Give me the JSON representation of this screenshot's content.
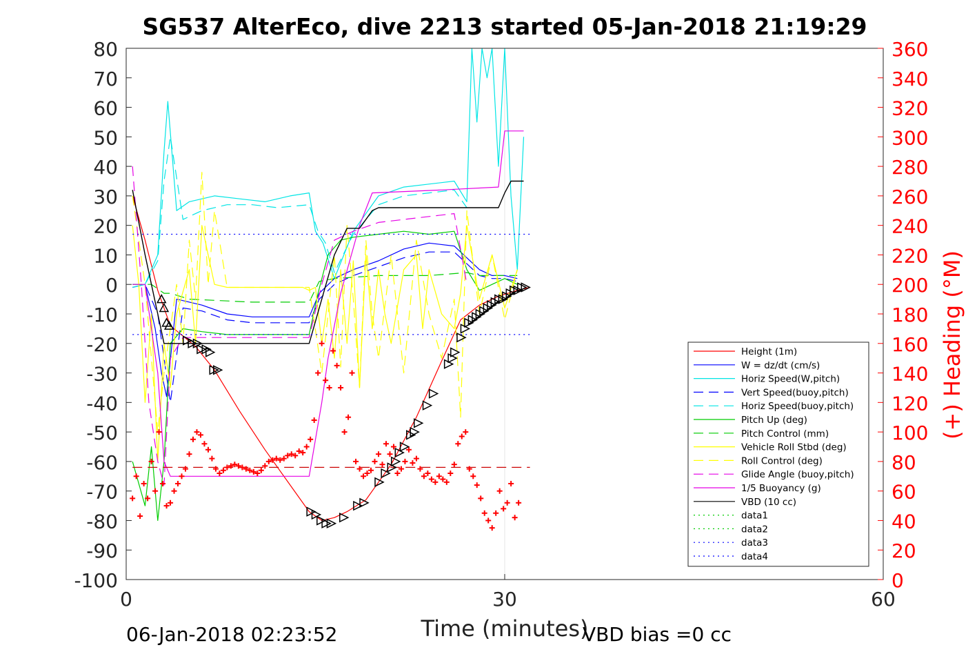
{
  "chart_data": {
    "type": "line",
    "title": "SG537 AlterEco, dive 2213 started 05-Jan-2018 21:19:29",
    "xlabel": "Time (minutes)",
    "ylabel": "",
    "y2label": "(+) Heading (°M)",
    "xlim": [
      0,
      60
    ],
    "ylim": [
      -100,
      80
    ],
    "y2lim": [
      0,
      360
    ],
    "xticks": [
      "0",
      "30",
      "60"
    ],
    "yticks": [
      "80",
      "70",
      "60",
      "50",
      "40",
      "30",
      "20",
      "10",
      "0",
      "-10",
      "-20",
      "-30",
      "-40",
      "-50",
      "-60",
      "-70",
      "-80",
      "-90",
      "-100"
    ],
    "y2ticks": [
      "360",
      "340",
      "320",
      "300",
      "280",
      "260",
      "240",
      "220",
      "200",
      "180",
      "160",
      "140",
      "120",
      "100",
      "80",
      "60",
      "40",
      "20",
      "0"
    ],
    "grid": "x-only",
    "legend_position": "lower-right",
    "footer_left": "06-Jan-2018 02:23:52",
    "footer_right": "VBD bias =0 cc",
    "legend": [
      {
        "label": "Height (1m)",
        "color": "#ff0000",
        "dash": "solid"
      },
      {
        "label": "W = dz/dt (cm/s)",
        "color": "#0000ff",
        "dash": "solid"
      },
      {
        "label": "Horiz Speed(W,pitch)",
        "color": "#00e5e5",
        "dash": "solid"
      },
      {
        "label": "Vert Speed(buoy,pitch)",
        "color": "#0000ff",
        "dash": "dashed"
      },
      {
        "label": "Horiz Speed(buoy,pitch)",
        "color": "#00e5e5",
        "dash": "dashed"
      },
      {
        "label": "Pitch Up (deg)",
        "color": "#00cc00",
        "dash": "solid"
      },
      {
        "label": "Pitch Control (mm)",
        "color": "#00cc00",
        "dash": "dashed"
      },
      {
        "label": "Vehicle Roll Stbd (deg)",
        "color": "#ffff00",
        "dash": "solid"
      },
      {
        "label": "Roll Control (deg)",
        "color": "#ffff00",
        "dash": "dashed"
      },
      {
        "label": "Glide Angle (buoy,pitch)",
        "color": "#e500e5",
        "dash": "dashed"
      },
      {
        "label": "1/5 Buoyancy (g)",
        "color": "#e500e5",
        "dash": "solid"
      },
      {
        "label": "VBD (10 cc)",
        "color": "#000000",
        "dash": "solid"
      },
      {
        "label": "data1",
        "color": "#00cc00",
        "dash": "dotted"
      },
      {
        "label": "data2",
        "color": "#00cc00",
        "dash": "dotted"
      },
      {
        "label": "data3",
        "color": "#0000ff",
        "dash": "dotted"
      },
      {
        "label": "data4",
        "color": "#0000ff",
        "dash": "dotted"
      }
    ],
    "series": [
      {
        "key": "height",
        "x": [
          0.5,
          1.5,
          2.5,
          3.0,
          3.5,
          5.5,
          7.0,
          9.0,
          11.0,
          13.0,
          14.5,
          15.5,
          16.5,
          17.5,
          19.0,
          21.0,
          23.0,
          25.0,
          26.5,
          28.0,
          29.5,
          31.0,
          32.0
        ],
        "y": [
          30,
          15,
          -2,
          -8,
          -14,
          -21,
          -29,
          -43,
          -56,
          -68,
          -77,
          -80,
          -79,
          -77,
          -73,
          -61,
          -45,
          -26,
          -12,
          -7,
          -4,
          -2,
          -1
        ]
      },
      {
        "key": "w",
        "x": [
          0.5,
          1.5,
          2.3,
          2.8,
          3.2,
          4.0,
          6.0,
          8.0,
          10.0,
          12.0,
          14.5,
          15.3,
          16.5,
          18.0,
          20.0,
          22.0,
          24.0,
          26.0,
          27.0,
          28.0,
          29.0,
          30.0,
          31.0
        ],
        "y": [
          -1,
          0,
          -15,
          -30,
          -38,
          -5,
          -7,
          -10,
          -11,
          -11,
          -11,
          -3,
          2,
          5,
          8,
          12,
          14,
          13,
          9,
          5,
          3,
          3,
          2
        ]
      },
      {
        "key": "horiz_w",
        "x": [
          0.5,
          1.5,
          2.5,
          3.0,
          3.3,
          4.0,
          5.0,
          7.0,
          9.0,
          11.0,
          13.0,
          14.5,
          15.0,
          15.6,
          16.5,
          18.0,
          20.0,
          22.0,
          24.0,
          26.0,
          27.0,
          27.4,
          27.8,
          28.2,
          28.6,
          29.0,
          29.5,
          30.0,
          30.5,
          31.0,
          31.5
        ],
        "y": [
          -1,
          0,
          10,
          45,
          62,
          25,
          28,
          30,
          29,
          28,
          30,
          31,
          18,
          14,
          2,
          18,
          30,
          33,
          34,
          35,
          28,
          80,
          55,
          80,
          70,
          80,
          40,
          80,
          30,
          5,
          50
        ]
      },
      {
        "key": "vert_buoy",
        "x": [
          0.5,
          1.5,
          2.5,
          3.0,
          3.5,
          4.5,
          6.0,
          8.0,
          10.0,
          12.0,
          14.5,
          15.3,
          16.5,
          18.0,
          20.0,
          22.0,
          24.0,
          26.0,
          27.0,
          28.0,
          29.0,
          30.0,
          31.0
        ],
        "y": [
          0,
          0,
          -10,
          -25,
          -40,
          -8,
          -9,
          -12,
          -13,
          -13,
          -13,
          -5,
          0,
          3,
          6,
          9,
          11,
          11,
          7,
          3,
          2,
          2,
          1
        ]
      },
      {
        "key": "horiz_buoy",
        "x": [
          0.5,
          1.5,
          2.5,
          3.0,
          3.5,
          4.5,
          6.0,
          8.0,
          10.0,
          12.0,
          14.5,
          15.2,
          15.8,
          16.5,
          18.0,
          20.0,
          22.0,
          24.0,
          26.0,
          27.0
        ],
        "y": [
          0,
          0,
          8,
          35,
          50,
          22,
          25,
          27,
          27,
          26,
          27,
          18,
          14,
          4,
          17,
          27,
          30,
          31,
          32,
          26
        ]
      },
      {
        "key": "pitch_up",
        "x": [
          0.5,
          1.5,
          2.0,
          2.5,
          3.0,
          3.5,
          4.5,
          6.0,
          8.0,
          10.0,
          12.0,
          14.5,
          15.2,
          16.0,
          17.0,
          18.0,
          20.0,
          22.0,
          24.0,
          26.0,
          27.0,
          28.0,
          29.0,
          30.0,
          31.0
        ],
        "y": [
          -60,
          -75,
          -55,
          -80,
          -60,
          -20,
          -15,
          -16,
          -17,
          -17,
          -17,
          -17,
          -3,
          10,
          15,
          16,
          17,
          18,
          17,
          18,
          5,
          -2,
          0,
          2,
          0
        ]
      },
      {
        "key": "pitch_ctrl",
        "x": [
          0.5,
          2.0,
          3.0,
          3.5,
          5.0,
          10.0,
          14.5,
          15.3,
          16.5,
          20.0,
          24.0,
          27.0,
          28.0,
          31.0
        ],
        "y": [
          0,
          0,
          -3,
          -3,
          -5,
          -6,
          -6,
          1,
          2,
          3,
          3,
          4,
          3,
          3
        ]
      },
      {
        "key": "roll",
        "x": [
          0.5,
          1.0,
          1.5,
          2.0,
          2.5,
          3.0,
          3.5,
          4.0,
          5.0,
          5.5,
          6.0,
          6.5,
          7.0,
          8.0,
          10.0,
          12.0,
          14.0,
          14.5,
          15.0,
          15.5,
          16.0,
          16.5,
          17.0,
          17.5,
          18.0,
          18.5,
          19.0,
          19.5,
          20.0,
          20.5,
          21.0,
          22.0,
          23.0,
          23.5,
          24.0,
          25.0,
          26.0,
          26.5,
          27.0,
          28.0,
          29.0,
          30.0,
          31.0
        ],
        "y": [
          20,
          0,
          -40,
          -10,
          -60,
          -20,
          -35,
          -10,
          5,
          -20,
          20,
          10,
          0,
          -1,
          -1,
          -1,
          -1,
          -2,
          -1,
          -20,
          -5,
          -25,
          5,
          -20,
          8,
          -35,
          10,
          -15,
          5,
          -10,
          -20,
          5,
          10,
          -15,
          5,
          -10,
          -15,
          -3,
          20,
          -5,
          10,
          -8,
          5
        ]
      },
      {
        "key": "roll_ctrl",
        "x": [
          0.5,
          1.5,
          2.5,
          3.0,
          4.0,
          4.5,
          5.0,
          5.5,
          6.0,
          6.5,
          7.0,
          8.0,
          10.0,
          14.5,
          15.5,
          16.5,
          17.0,
          17.5,
          18.0,
          18.5,
          19.0,
          19.5,
          20.0,
          21.0,
          22.0,
          23.0,
          24.0,
          25.0,
          26.0,
          26.5,
          27.0,
          28.0,
          29.0,
          30.0,
          31.0
        ],
        "y": [
          30,
          0,
          -50,
          -30,
          0,
          -20,
          15,
          -5,
          38,
          0,
          25,
          -1,
          -1,
          -1,
          -30,
          10,
          -28,
          20,
          -5,
          -35,
          15,
          -10,
          -25,
          10,
          -30,
          15,
          -10,
          -25,
          -5,
          -45,
          25,
          -10,
          10,
          -12,
          5
        ]
      },
      {
        "key": "glide",
        "x": [
          0.5,
          1.2,
          1.8,
          2.5,
          3.0,
          3.5,
          4.5,
          6.0,
          10.0,
          14.5,
          15.5,
          16.5,
          18.0,
          20.0,
          22.0,
          24.0,
          26.0,
          27.0
        ],
        "y": [
          40,
          0,
          -40,
          -60,
          -68,
          -25,
          -18,
          -18,
          -18,
          -18,
          0,
          15,
          18,
          21,
          22,
          23,
          24,
          0
        ]
      },
      {
        "key": "buoy",
        "x": [
          0.5,
          1.5,
          2.5,
          3.0,
          3.5,
          4.0,
          14.5,
          15.5,
          16.0,
          17.0,
          18.5,
          19.5,
          25.0,
          29.5,
          30.0,
          31.5
        ],
        "y": [
          0,
          0,
          -30,
          -60,
          -65,
          -65,
          -65,
          -40,
          -25,
          -3,
          20,
          31,
          32,
          33,
          52,
          52
        ]
      },
      {
        "key": "vbd",
        "x": [
          0.5,
          1.5,
          2.5,
          3.0,
          14.5,
          15.5,
          16.5,
          17.5,
          18.5,
          19.5,
          20.0,
          29.5,
          30.0,
          30.5,
          31.5
        ],
        "y": [
          32,
          10,
          -10,
          -20,
          -20,
          -5,
          10,
          19,
          19,
          25,
          26,
          26,
          31,
          35,
          35
        ]
      },
      {
        "key": "data1",
        "x": [
          0.5,
          32
        ],
        "y": [
          17,
          17
        ]
      },
      {
        "key": "data3",
        "x": [
          0.5,
          32
        ],
        "y": [
          -17,
          -17
        ]
      },
      {
        "key": "pitch_ctrl_ref",
        "x": [
          0.5,
          32
        ],
        "y": [
          -62,
          -62
        ]
      }
    ],
    "heading": {
      "x": [
        0.5,
        0.8,
        1.1,
        1.4,
        1.7,
        2.0,
        2.3,
        2.6,
        2.9,
        3.2,
        3.5,
        3.8,
        4.1,
        4.4,
        4.7,
        5.0,
        5.3,
        5.6,
        5.9,
        6.2,
        6.5,
        6.8,
        7.1,
        7.4,
        7.7,
        8.0,
        8.3,
        8.6,
        8.9,
        9.2,
        9.5,
        9.8,
        10.1,
        10.4,
        10.7,
        11.0,
        11.3,
        11.6,
        11.9,
        12.2,
        12.5,
        12.8,
        13.1,
        13.4,
        13.7,
        14.0,
        14.3,
        14.6,
        14.9,
        15.2,
        15.5,
        15.8,
        16.1,
        16.4,
        16.7,
        17.0,
        17.3,
        17.6,
        17.9,
        18.2,
        18.5,
        18.8,
        19.1,
        19.4,
        19.7,
        20.0,
        20.3,
        20.6,
        20.9,
        21.2,
        21.5,
        21.8,
        22.1,
        22.4,
        22.7,
        23.0,
        23.3,
        23.6,
        23.9,
        24.2,
        24.5,
        24.8,
        25.1,
        25.4,
        25.7,
        26.0,
        26.3,
        26.6,
        26.9,
        27.2,
        27.5,
        27.8,
        28.1,
        28.4,
        28.7,
        29.0,
        29.3,
        29.6,
        29.9,
        30.2,
        30.5,
        30.8,
        31.1
      ],
      "y": [
        55,
        70,
        43,
        65,
        55,
        80,
        60,
        100,
        65,
        50,
        52,
        60,
        65,
        70,
        75,
        85,
        95,
        100,
        98,
        92,
        88,
        82,
        75,
        72,
        74,
        76,
        77,
        78,
        77,
        76,
        75,
        74,
        73,
        72,
        74,
        77,
        80,
        81,
        82,
        81,
        82,
        84,
        85,
        84,
        87,
        86,
        90,
        95,
        108,
        140,
        160,
        135,
        130,
        155,
        145,
        130,
        100,
        110,
        140,
        80,
        75,
        70,
        72,
        74,
        80,
        85,
        78,
        92,
        85,
        90,
        72,
        75,
        80,
        88,
        79,
        82,
        75,
        70,
        72,
        68,
        66,
        70,
        68,
        66,
        72,
        78,
        92,
        97,
        100,
        75,
        70,
        64,
        55,
        45,
        40,
        35,
        45,
        60,
        48,
        52,
        65,
        42,
        52
      ]
    },
    "markers_down": [
      {
        "x": 2.8,
        "y": -5
      },
      {
        "x": 3.0,
        "y": -8
      },
      {
        "x": 3.2,
        "y": -13
      },
      {
        "x": 3.4,
        "y": -14
      }
    ],
    "markers_right": [
      {
        "x": 4.8,
        "y": -19
      },
      {
        "x": 5.2,
        "y": -20
      },
      {
        "x": 5.6,
        "y": -20
      },
      {
        "x": 5.9,
        "y": -22
      },
      {
        "x": 6.3,
        "y": -22
      },
      {
        "x": 6.6,
        "y": -23
      },
      {
        "x": 6.9,
        "y": -29
      },
      {
        "x": 7.2,
        "y": -29
      },
      {
        "x": 14.6,
        "y": -77
      },
      {
        "x": 15.0,
        "y": -78
      },
      {
        "x": 15.4,
        "y": -80
      },
      {
        "x": 15.8,
        "y": -81
      },
      {
        "x": 16.2,
        "y": -81
      },
      {
        "x": 17.2,
        "y": -79
      },
      {
        "x": 18.3,
        "y": -75
      },
      {
        "x": 18.8,
        "y": -74
      },
      {
        "x": 20.0,
        "y": -67
      },
      {
        "x": 20.5,
        "y": -64
      },
      {
        "x": 21.0,
        "y": -62
      },
      {
        "x": 21.3,
        "y": -60
      },
      {
        "x": 21.6,
        "y": -57
      },
      {
        "x": 22.0,
        "y": -55
      },
      {
        "x": 22.5,
        "y": -51
      },
      {
        "x": 22.8,
        "y": -50
      },
      {
        "x": 23.1,
        "y": -47
      },
      {
        "x": 23.8,
        "y": -41
      },
      {
        "x": 24.3,
        "y": -37
      },
      {
        "x": 25.5,
        "y": -27
      },
      {
        "x": 25.8,
        "y": -25
      },
      {
        "x": 26.0,
        "y": -23
      },
      {
        "x": 26.5,
        "y": -18
      },
      {
        "x": 26.8,
        "y": -15
      },
      {
        "x": 27.1,
        "y": -13
      },
      {
        "x": 27.4,
        "y": -12
      },
      {
        "x": 27.7,
        "y": -11
      },
      {
        "x": 28.0,
        "y": -10
      },
      {
        "x": 28.3,
        "y": -9
      },
      {
        "x": 28.6,
        "y": -8
      },
      {
        "x": 28.9,
        "y": -7
      },
      {
        "x": 29.2,
        "y": -6
      },
      {
        "x": 29.5,
        "y": -5
      },
      {
        "x": 29.8,
        "y": -5
      },
      {
        "x": 30.1,
        "y": -4
      },
      {
        "x": 30.4,
        "y": -3
      },
      {
        "x": 30.7,
        "y": -2
      },
      {
        "x": 31.0,
        "y": -2
      },
      {
        "x": 31.3,
        "y": -1
      },
      {
        "x": 31.6,
        "y": -1
      }
    ]
  }
}
